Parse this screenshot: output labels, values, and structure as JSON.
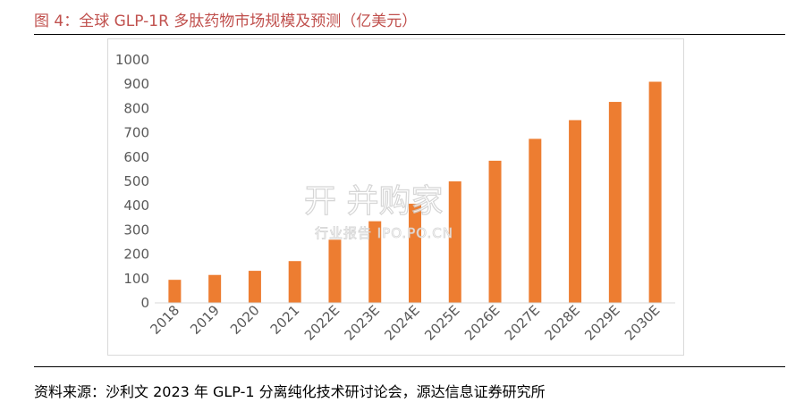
{
  "figure": {
    "title": "图 4：全球 GLP-1R 多肽药物市场规模及预测（亿美元）",
    "source": "资料来源：沙利文 2023 年 GLP-1 分离纯化技术研讨论会，源达信息证券研究所"
  },
  "watermark": {
    "main": "开 并购家",
    "sub": "行业报告 IPO.PO.CN"
  },
  "chart_data": {
    "type": "bar",
    "title": "",
    "xlabel": "",
    "ylabel": "",
    "categories": [
      "2018",
      "2019",
      "2020",
      "2021",
      "2022E",
      "2023E",
      "2024E",
      "2025E",
      "2026E",
      "2027E",
      "2028E",
      "2029E",
      "2030E"
    ],
    "values": [
      95,
      115,
      132,
      172,
      260,
      336,
      408,
      500,
      585,
      675,
      752,
      827,
      910
    ],
    "ylim": [
      0,
      1000
    ],
    "yticks": [
      "0",
      "100",
      "200",
      "300",
      "400",
      "500",
      "600",
      "700",
      "800",
      "900",
      "1000"
    ],
    "bar_color": "#ed7d31",
    "grid": false,
    "legend": "none"
  }
}
